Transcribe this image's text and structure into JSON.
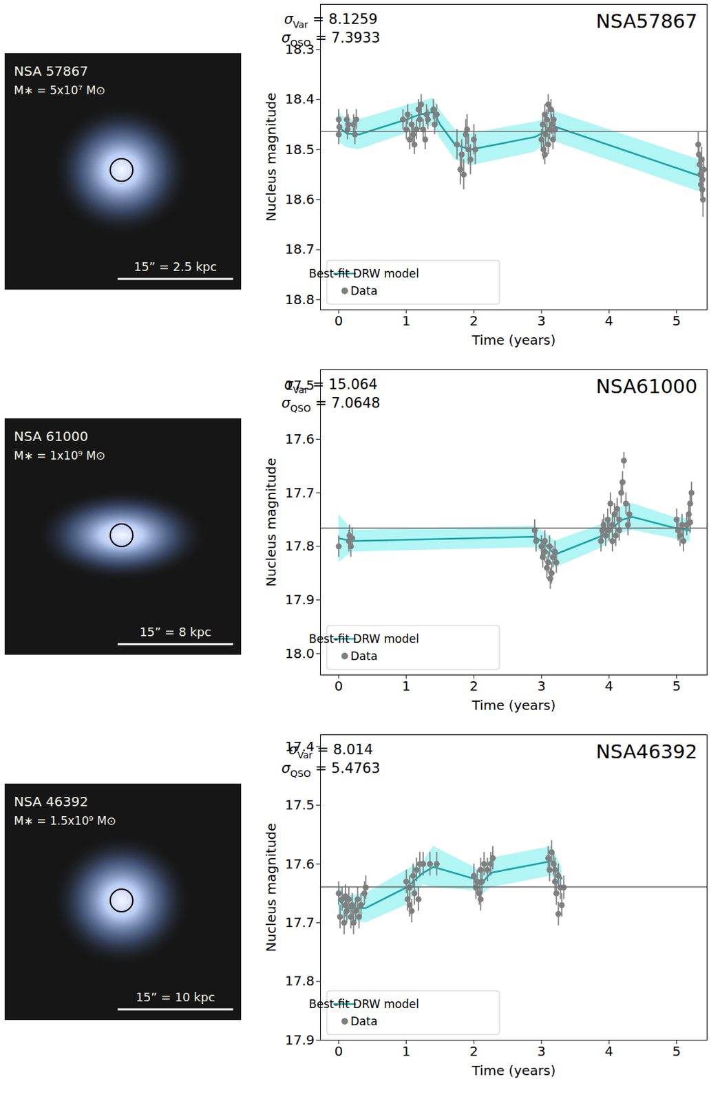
{
  "chart_data": [
    {
      "type": "scatter",
      "title": "NSA57867",
      "x_label": "Time (years)",
      "y_label": "Nucleus magnitude",
      "xlim": [
        -0.27,
        5.45
      ],
      "ylim": [
        18.82,
        18.21
      ],
      "xticks": [
        0,
        1,
        2,
        3,
        4,
        5
      ],
      "yticks": [
        18.3,
        18.4,
        18.5,
        18.6,
        18.7,
        18.8
      ],
      "grid": false,
      "legend": "lower left",
      "reference_line": 18.464,
      "annotations": [
        {
          "text": "σ",
          "subscript": "Var",
          "value": 8.1259
        },
        {
          "text": "σ",
          "subscript": "QSO",
          "value": 7.3933
        }
      ],
      "image": {
        "label": "NSA 57867",
        "mass": {
          "value": 50000000,
          "label": "M∗ = 5x10⁷ M⊙"
        },
        "scale_bar": "15” = 2.5 kpc"
      },
      "series": [
        {
          "name": "Best-fit DRW model",
          "type": "line",
          "color": "#1ba3a8",
          "x": [
            0,
            0.12,
            0.3,
            1.0,
            1.2,
            1.4,
            1.5,
            1.72,
            1.95,
            2.9,
            3.05,
            3.15,
            5.35
          ],
          "values": [
            18.455,
            18.468,
            18.47,
            18.44,
            18.43,
            18.425,
            18.45,
            18.49,
            18.5,
            18.475,
            18.465,
            18.452,
            18.553
          ],
          "error": [
            0.03,
            0.028,
            0.03,
            0.028,
            0.025,
            0.028,
            0.028,
            0.03,
            0.032,
            0.03,
            0.025,
            0.03,
            0.032
          ]
        },
        {
          "name": "Data",
          "type": "scatter",
          "marker": "circle",
          "color": "#7f7f7f",
          "x": [
            0.0,
            0.0,
            0.01,
            0.12,
            0.13,
            0.14,
            0.22,
            0.24,
            0.26,
            0.95,
            1.0,
            1.02,
            1.05,
            1.08,
            1.1,
            1.12,
            1.15,
            1.18,
            1.2,
            1.22,
            1.25,
            1.28,
            1.3,
            1.32,
            1.4,
            1.42,
            1.45,
            1.75,
            1.8,
            1.82,
            1.85,
            1.88,
            1.9,
            1.92,
            1.95,
            2.0,
            2.02,
            3.0,
            3.02,
            3.03,
            3.05,
            3.06,
            3.08,
            3.1,
            3.12,
            3.14,
            3.15,
            3.17,
            3.18,
            3.2,
            3.05,
            3.1,
            5.32,
            5.33,
            5.34,
            5.35,
            5.36,
            5.37,
            5.38,
            5.39,
            5.4,
            5.38
          ],
          "values": [
            18.44,
            18.47,
            18.455,
            18.44,
            18.46,
            18.45,
            18.45,
            18.47,
            18.44,
            18.44,
            18.46,
            18.43,
            18.48,
            18.45,
            18.47,
            18.49,
            18.46,
            18.42,
            18.44,
            18.41,
            18.46,
            18.48,
            18.43,
            18.44,
            18.42,
            18.45,
            18.43,
            18.49,
            18.54,
            18.51,
            18.55,
            18.47,
            18.46,
            18.5,
            18.52,
            18.48,
            18.5,
            18.48,
            18.45,
            18.5,
            18.43,
            18.47,
            18.44,
            18.49,
            18.46,
            18.42,
            18.45,
            18.48,
            18.44,
            18.46,
            18.51,
            18.41,
            18.49,
            18.51,
            18.53,
            18.55,
            18.57,
            18.52,
            18.56,
            18.6,
            18.54,
            18.58
          ],
          "error": [
            0.02,
            0.02,
            0.02,
            0.02,
            0.02,
            0.02,
            0.02,
            0.02,
            0.02,
            0.02,
            0.02,
            0.02,
            0.02,
            0.02,
            0.02,
            0.02,
            0.02,
            0.02,
            0.02,
            0.02,
            0.02,
            0.02,
            0.02,
            0.02,
            0.02,
            0.02,
            0.02,
            0.03,
            0.03,
            0.03,
            0.03,
            0.03,
            0.03,
            0.03,
            0.03,
            0.03,
            0.03,
            0.02,
            0.02,
            0.02,
            0.02,
            0.02,
            0.02,
            0.02,
            0.02,
            0.02,
            0.02,
            0.02,
            0.02,
            0.02,
            0.02,
            0.02,
            0.025,
            0.025,
            0.025,
            0.025,
            0.025,
            0.025,
            0.025,
            0.035,
            0.025,
            0.025
          ]
        }
      ]
    },
    {
      "type": "scatter",
      "title": "NSA61000",
      "x_label": "Time (years)",
      "y_label": "Nucleus magnitude",
      "xlim": [
        -0.27,
        5.45
      ],
      "ylim": [
        18.04,
        17.47
      ],
      "xticks": [
        0,
        1,
        2,
        3,
        4,
        5
      ],
      "yticks": [
        17.5,
        17.6,
        17.7,
        17.8,
        17.9,
        {
          "value": 18,
          "label": "18.0"
        }
      ],
      "grid": false,
      "legend": "lower left",
      "reference_line": 17.766,
      "annotations": [
        {
          "text": "σ",
          "subscript": "Var",
          "value": 15.064
        },
        {
          "text": "σ",
          "subscript": "QSO",
          "value": 7.0648
        }
      ],
      "image": {
        "label": "NSA 61000",
        "mass": {
          "value": 1000000000,
          "label": "M∗ = 1x10⁹ M⊙"
        },
        "scale_bar": "15” = 8 kpc"
      },
      "series": [
        {
          "name": "Best-fit DRW model",
          "type": "line",
          "color": "#1ba3a8",
          "x": [
            0,
            0.2,
            2.9,
            3.0,
            3.2,
            3.9,
            4.05,
            4.2,
            4.35,
            4.95,
            5.2
          ],
          "values": [
            17.785,
            17.79,
            17.782,
            17.79,
            17.815,
            17.78,
            17.765,
            17.75,
            17.745,
            17.765,
            17.77
          ],
          "error": [
            0.045,
            0.02,
            0.02,
            0.02,
            0.025,
            0.022,
            0.02,
            0.025,
            0.025,
            0.02,
            0.022
          ]
        },
        {
          "name": "Data",
          "type": "scatter",
          "marker": "circle",
          "color": "#7f7f7f",
          "x": [
            0.0,
            0.15,
            0.16,
            0.18,
            0.2,
            2.9,
            2.92,
            3.0,
            3.02,
            3.05,
            3.08,
            3.1,
            3.12,
            3.15,
            3.17,
            3.2,
            3.22,
            3.05,
            3.13,
            3.88,
            3.9,
            3.92,
            3.95,
            3.98,
            4.0,
            4.02,
            4.05,
            4.08,
            4.1,
            4.12,
            4.15,
            4.18,
            4.2,
            4.22,
            4.25,
            4.28,
            4.3,
            4.05,
            4.15,
            5.0,
            5.02,
            5.05,
            5.08,
            5.1,
            5.15,
            5.18,
            5.2,
            5.22,
            5.2
          ],
          "values": [
            17.8,
            17.79,
            17.78,
            17.8,
            17.785,
            17.77,
            17.79,
            17.8,
            17.82,
            17.81,
            17.84,
            17.83,
            17.8,
            17.85,
            17.82,
            17.81,
            17.83,
            17.79,
            17.86,
            17.79,
            17.77,
            17.76,
            17.78,
            17.75,
            17.77,
            17.72,
            17.76,
            17.74,
            17.78,
            17.73,
            17.75,
            17.7,
            17.68,
            17.64,
            17.72,
            17.76,
            17.74,
            17.79,
            17.77,
            17.75,
            17.77,
            17.78,
            17.76,
            17.79,
            17.76,
            17.74,
            17.72,
            17.7,
            17.755
          ],
          "error": [
            0.02,
            0.02,
            0.02,
            0.02,
            0.02,
            0.02,
            0.02,
            0.02,
            0.02,
            0.02,
            0.02,
            0.02,
            0.02,
            0.02,
            0.02,
            0.02,
            0.02,
            0.02,
            0.02,
            0.02,
            0.02,
            0.02,
            0.02,
            0.02,
            0.02,
            0.02,
            0.02,
            0.02,
            0.02,
            0.02,
            0.02,
            0.02,
            0.02,
            0.015,
            0.02,
            0.02,
            0.02,
            0.02,
            0.02,
            0.02,
            0.02,
            0.02,
            0.02,
            0.02,
            0.02,
            0.02,
            0.02,
            0.02,
            0.02
          ]
        }
      ]
    },
    {
      "type": "scatter",
      "title": "NSA46392",
      "x_label": "Time (years)",
      "y_label": "Nucleus magnitude",
      "xlim": [
        -0.27,
        5.45
      ],
      "ylim": [
        17.9,
        17.38
      ],
      "xticks": [
        0,
        1,
        2,
        3,
        4,
        5
      ],
      "yticks": [
        17.4,
        17.5,
        17.6,
        17.7,
        17.8,
        17.9
      ],
      "grid": false,
      "legend": "lower left",
      "reference_line": 17.639,
      "annotations": [
        {
          "text": "σ",
          "subscript": "Var",
          "value": 8.014
        },
        {
          "text": "σ",
          "subscript": "QSO",
          "value": 5.4763
        }
      ],
      "image": {
        "label": "NSA 46392",
        "mass": {
          "value": 1500000000,
          "label": "M∗ = 1.5x10⁹ M⊙"
        },
        "scale_bar": "15” = 10 kpc"
      },
      "series": [
        {
          "name": "Best-fit DRW model",
          "type": "line",
          "color": "#1ba3a8",
          "x": [
            0,
            0.1,
            0.4,
            1.0,
            1.25,
            1.4,
            2.0,
            2.1,
            2.25,
            3.15,
            3.3
          ],
          "values": [
            17.66,
            17.675,
            17.675,
            17.64,
            17.615,
            17.605,
            17.625,
            17.635,
            17.615,
            17.595,
            17.625
          ],
          "error": [
            0.025,
            0.02,
            0.025,
            0.03,
            0.02,
            0.035,
            0.02,
            0.02,
            0.025,
            0.025,
            0.02
          ]
        },
        {
          "name": "Data",
          "type": "scatter",
          "marker": "circle",
          "color": "#7f7f7f",
          "x": [
            0.0,
            0.02,
            0.05,
            0.08,
            0.1,
            0.12,
            0.15,
            0.18,
            0.2,
            0.22,
            0.25,
            0.28,
            0.3,
            0.33,
            0.38,
            0.1,
            0.4,
            1.0,
            1.02,
            1.05,
            1.08,
            1.1,
            1.12,
            1.15,
            1.18,
            1.2,
            1.25,
            1.35,
            1.45,
            1.05,
            2.0,
            2.03,
            2.05,
            2.08,
            2.1,
            2.12,
            2.15,
            2.2,
            2.25,
            2.28,
            2.1,
            3.1,
            3.12,
            3.15,
            3.18,
            3.2,
            3.22,
            3.25,
            3.28,
            3.3,
            3.33,
            3.2,
            3.25
          ],
          "values": [
            17.65,
            17.69,
            17.66,
            17.7,
            17.67,
            17.68,
            17.66,
            17.69,
            17.67,
            17.7,
            17.68,
            17.66,
            17.69,
            17.67,
            17.65,
            17.655,
            17.64,
            17.63,
            17.66,
            17.64,
            17.68,
            17.62,
            17.65,
            17.61,
            17.66,
            17.6,
            17.6,
            17.6,
            17.6,
            17.67,
            17.62,
            17.64,
            17.63,
            17.65,
            17.61,
            17.63,
            17.6,
            17.61,
            17.6,
            17.59,
            17.66,
            17.59,
            17.61,
            17.58,
            17.6,
            17.63,
            17.65,
            17.62,
            17.64,
            17.67,
            17.64,
            17.61,
            17.685
          ],
          "error": [
            0.02,
            0.02,
            0.02,
            0.02,
            0.02,
            0.02,
            0.02,
            0.02,
            0.02,
            0.02,
            0.02,
            0.02,
            0.02,
            0.02,
            0.02,
            0.02,
            0.02,
            0.02,
            0.02,
            0.02,
            0.02,
            0.02,
            0.02,
            0.02,
            0.02,
            0.02,
            0.02,
            0.02,
            0.02,
            0.02,
            0.02,
            0.02,
            0.02,
            0.02,
            0.02,
            0.02,
            0.02,
            0.02,
            0.02,
            0.02,
            0.02,
            0.02,
            0.02,
            0.02,
            0.02,
            0.02,
            0.02,
            0.02,
            0.02,
            0.02,
            0.02,
            0.02,
            0.02
          ]
        }
      ]
    }
  ]
}
